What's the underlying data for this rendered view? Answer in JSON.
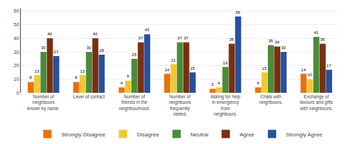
{
  "chart_data": {
    "type": "bar",
    "categories": [
      "Number of\nneighbours\nknown by name.",
      "Level of contact",
      "Number of\nfriends in the\nneighbourhood.",
      "Number of\nneighbours\nfrequently\nvisited.",
      "Asking for help\nin emergency\nfrom\nneighbours.",
      "Chats with\nneighbours.",
      "Exchange of\nfavours and gifts\nwith neighbours."
    ],
    "series": [
      {
        "name": "Strongly Disagree",
        "color": "#E8720C",
        "values": [
          8,
          8,
          4,
          14,
          3,
          4,
          14
        ]
      },
      {
        "name": "Disagree",
        "color": "#F0C832",
        "values": [
          13,
          13,
          9,
          21,
          4,
          15,
          10
        ]
      },
      {
        "name": "Neutral",
        "color": "#4A8C3A",
        "values": [
          30,
          30,
          25,
          37,
          19,
          35,
          41
        ]
      },
      {
        "name": "Agree",
        "color": "#7A3010",
        "values": [
          40,
          40,
          37,
          37,
          36,
          34,
          36
        ]
      },
      {
        "name": "Strongly Agree",
        "color": "#2850A0",
        "values": [
          27,
          28,
          43,
          15,
          56,
          30,
          17
        ]
      }
    ],
    "ylim": [
      0,
      62
    ],
    "yticks": [
      0,
      10,
      20,
      30,
      40,
      50,
      60
    ],
    "grid": true,
    "legend": "bottom",
    "data_labels": true
  }
}
